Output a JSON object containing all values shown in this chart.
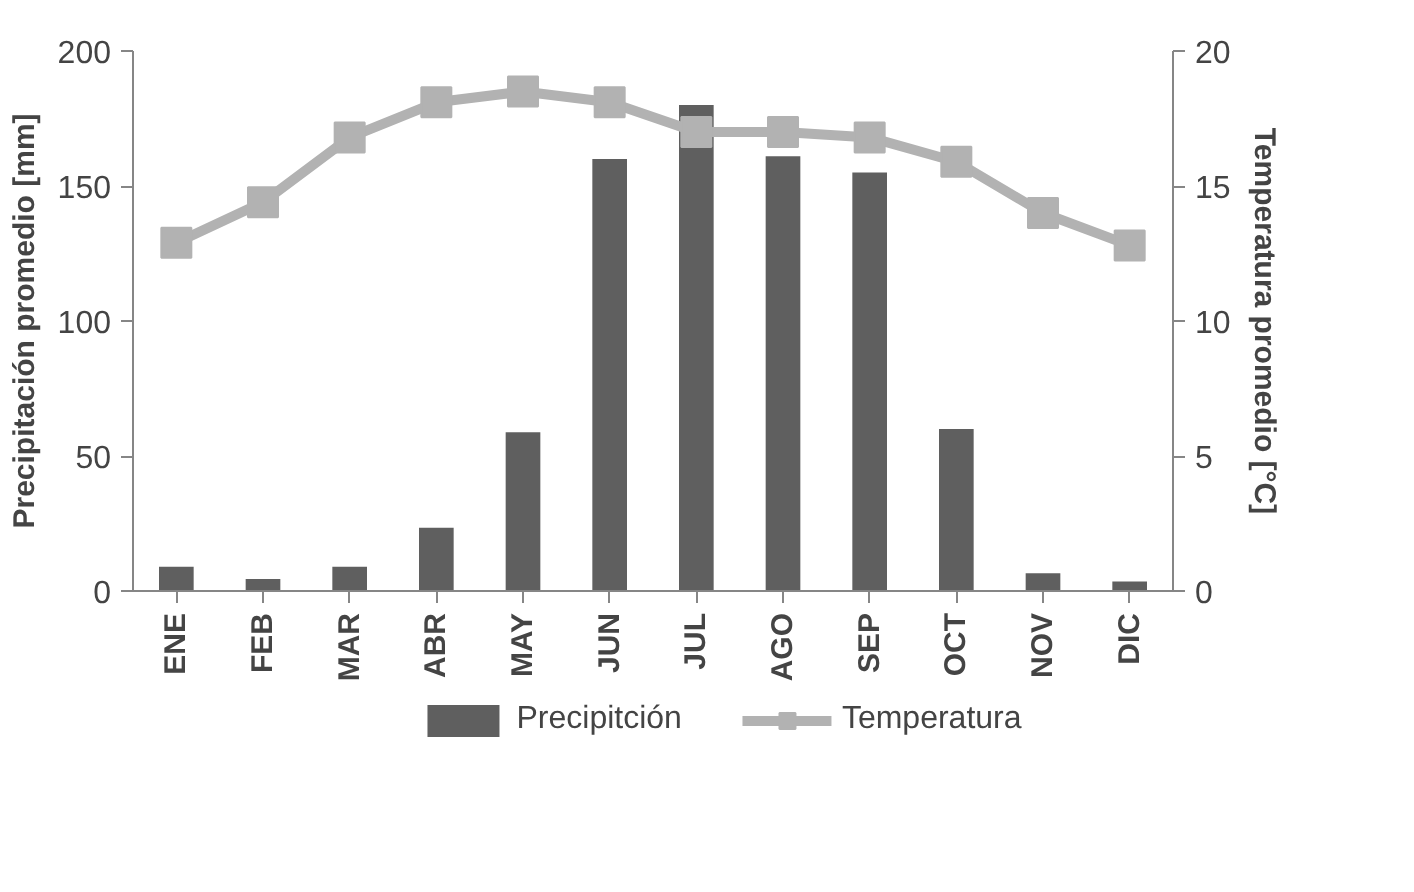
{
  "chart_data": {
    "type": "bar",
    "categories": [
      "ENE",
      "FEB",
      "MAR",
      "ABR",
      "MAY",
      "JUN",
      "JUL",
      "AGO",
      "SEP",
      "OCT",
      "NOV",
      "DIC"
    ],
    "ylabel": "Precipitación promedio [mm]",
    "y2label": "Temperatura promedio [°C]",
    "ylim": [
      0,
      200
    ],
    "yticks": [
      0,
      50,
      100,
      150,
      200
    ],
    "y2lim": [
      0,
      20
    ],
    "y2ticks": [
      0,
      5,
      10,
      15,
      20
    ],
    "series": [
      {
        "name": "Precipitción",
        "color": "#5f5f5f",
        "values": [
          9,
          4.4,
          9,
          23.4,
          58.8,
          160,
          180,
          161,
          155,
          60,
          6.6,
          3.5
        ]
      },
      {
        "name": "Temperatura",
        "type": "line",
        "axis": "y2",
        "color": "#b2b2b2",
        "marker": "square",
        "values": [
          12.9,
          14.4,
          16.8,
          18.1,
          18.5,
          18.1,
          17.0,
          17.0,
          16.8,
          15.9,
          14.0,
          12.8
        ]
      }
    ],
    "legend": "bottom",
    "grid": false
  }
}
